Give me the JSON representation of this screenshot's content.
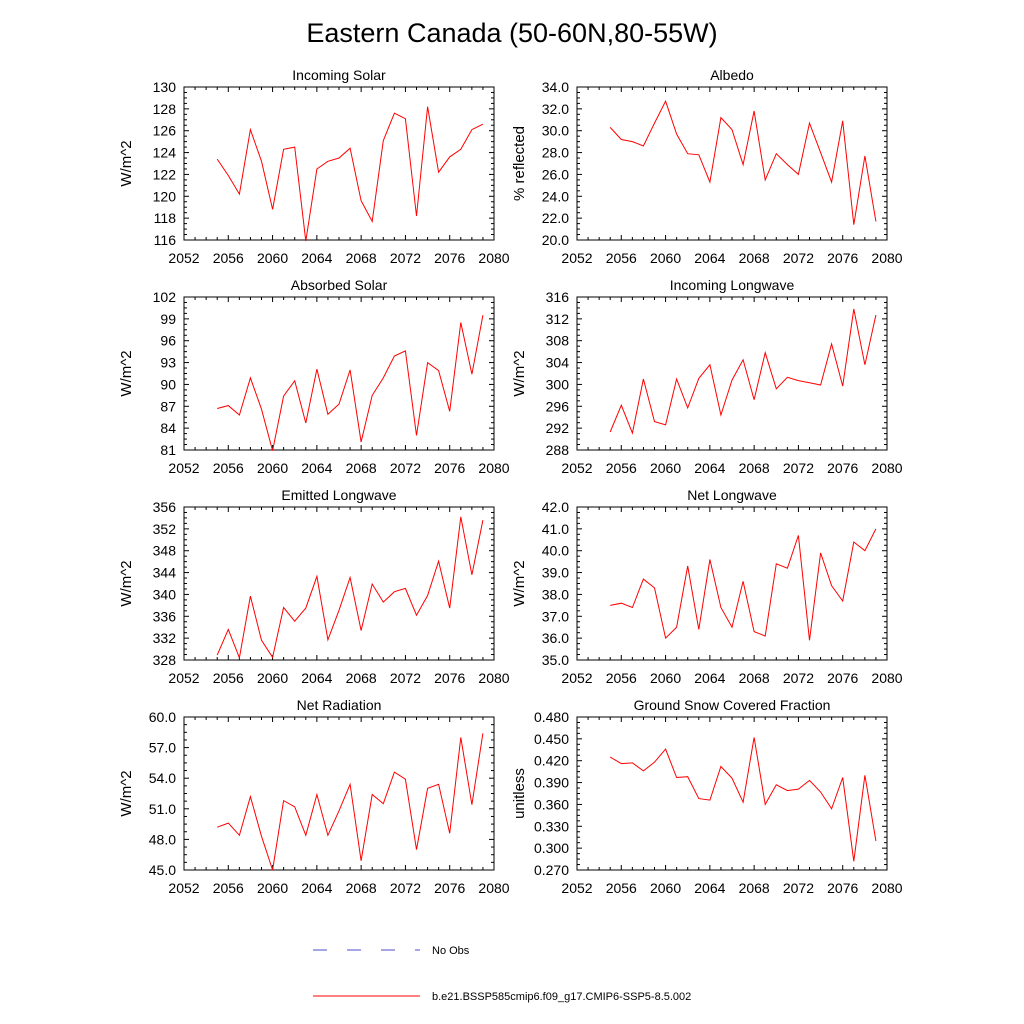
{
  "page": {
    "title": "Eastern Canada (50-60N,80-55W)"
  },
  "colors": {
    "series": "#ff0000",
    "obs": "#4c4ccc",
    "axis": "#000000"
  },
  "legend": {
    "obs_label": "No Obs",
    "model_label": "b.e21.BSSP585cmip6.f09_g17.CMIP6-SSP5-8.5.002"
  },
  "chart_data": [
    {
      "type": "line",
      "title": "Incoming Solar",
      "ylabel": "W/m^2",
      "xlim": [
        2052,
        2080
      ],
      "ylim": [
        116,
        130
      ],
      "x_ticks": [
        "2052",
        "2056",
        "2060",
        "2064",
        "2068",
        "2072",
        "2076",
        "2080"
      ],
      "y_ticks": [
        "116",
        "118",
        "120",
        "122",
        "124",
        "126",
        "128",
        "130"
      ],
      "x": [
        2055,
        2056,
        2057,
        2058,
        2059,
        2060,
        2061,
        2062,
        2063,
        2064,
        2065,
        2066,
        2067,
        2068,
        2069,
        2070,
        2071,
        2072,
        2073,
        2074,
        2075,
        2076,
        2077,
        2078,
        2079
      ],
      "series": [
        {
          "values": [
            123.4,
            121.9,
            120.2,
            126.1,
            123.2,
            118.8,
            124.3,
            124.5,
            115.9,
            122.5,
            123.2,
            123.5,
            124.4,
            119.6,
            117.7,
            125.1,
            127.6,
            127.1,
            118.2,
            128.2,
            122.2,
            123.6,
            124.3,
            126.1,
            126.6
          ]
        }
      ]
    },
    {
      "type": "line",
      "title": "Albedo",
      "ylabel": "% reflected",
      "xlim": [
        2052,
        2080
      ],
      "ylim": [
        20.0,
        34.0
      ],
      "x_ticks": [
        "2052",
        "2056",
        "2060",
        "2064",
        "2068",
        "2072",
        "2076",
        "2080"
      ],
      "y_ticks": [
        "20.0",
        "22.0",
        "24.0",
        "26.0",
        "28.0",
        "30.0",
        "32.0",
        "34.0"
      ],
      "x": [
        2055,
        2056,
        2057,
        2058,
        2059,
        2060,
        2061,
        2062,
        2063,
        2064,
        2065,
        2066,
        2067,
        2068,
        2069,
        2070,
        2071,
        2072,
        2073,
        2074,
        2075,
        2076,
        2077,
        2078,
        2079
      ],
      "series": [
        {
          "values": [
            30.3,
            29.2,
            29.0,
            28.6,
            30.7,
            32.7,
            29.7,
            27.9,
            27.8,
            25.3,
            31.2,
            30.1,
            26.9,
            31.8,
            25.5,
            27.9,
            26.9,
            26.0,
            30.7,
            28.0,
            25.3,
            30.9,
            21.4,
            27.7,
            21.7
          ]
        }
      ]
    },
    {
      "type": "line",
      "title": "Absorbed Solar",
      "ylabel": "W/m^2",
      "xlim": [
        2052,
        2080
      ],
      "ylim": [
        81,
        102
      ],
      "x_ticks": [
        "2052",
        "2056",
        "2060",
        "2064",
        "2068",
        "2072",
        "2076",
        "2080"
      ],
      "y_ticks": [
        "81",
        "84",
        "87",
        "90",
        "93",
        "96",
        "99",
        "102"
      ],
      "x": [
        2055,
        2056,
        2057,
        2058,
        2059,
        2060,
        2061,
        2062,
        2063,
        2064,
        2065,
        2066,
        2067,
        2068,
        2069,
        2070,
        2071,
        2072,
        2073,
        2074,
        2075,
        2076,
        2077,
        2078,
        2079
      ],
      "series": [
        {
          "values": [
            86.7,
            87.1,
            85.8,
            90.9,
            86.6,
            80.9,
            88.4,
            90.5,
            84.7,
            92.1,
            85.9,
            87.3,
            92.0,
            82.1,
            88.5,
            90.9,
            93.9,
            94.6,
            83.0,
            93.0,
            91.9,
            86.3,
            98.5,
            91.4,
            99.5
          ]
        }
      ]
    },
    {
      "type": "line",
      "title": "Incoming Longwave",
      "ylabel": "W/m^2",
      "xlim": [
        2052,
        2080
      ],
      "ylim": [
        288,
        316
      ],
      "x_ticks": [
        "2052",
        "2056",
        "2060",
        "2064",
        "2068",
        "2072",
        "2076",
        "2080"
      ],
      "y_ticks": [
        "288",
        "292",
        "296",
        "300",
        "304",
        "308",
        "312",
        "316"
      ],
      "x": [
        2055,
        2056,
        2057,
        2058,
        2059,
        2060,
        2061,
        2062,
        2063,
        2064,
        2065,
        2066,
        2067,
        2068,
        2069,
        2070,
        2071,
        2072,
        2073,
        2074,
        2075,
        2076,
        2077,
        2078,
        2079
      ],
      "series": [
        {
          "values": [
            291.3,
            296.2,
            291.1,
            301.0,
            293.2,
            292.6,
            301.0,
            295.7,
            301.1,
            303.6,
            294.4,
            300.8,
            304.5,
            297.2,
            305.8,
            299.2,
            301.3,
            300.7,
            300.3,
            299.9,
            307.4,
            299.7,
            313.8,
            303.6,
            312.7
          ]
        }
      ]
    },
    {
      "type": "line",
      "title": "Emitted Longwave",
      "ylabel": "W/m^2",
      "xlim": [
        2052,
        2080
      ],
      "ylim": [
        328,
        356
      ],
      "x_ticks": [
        "2052",
        "2056",
        "2060",
        "2064",
        "2068",
        "2072",
        "2076",
        "2080"
      ],
      "y_ticks": [
        "328",
        "332",
        "336",
        "340",
        "344",
        "348",
        "352",
        "356"
      ],
      "x": [
        2055,
        2056,
        2057,
        2058,
        2059,
        2060,
        2061,
        2062,
        2063,
        2064,
        2065,
        2066,
        2067,
        2068,
        2069,
        2070,
        2071,
        2072,
        2073,
        2074,
        2075,
        2076,
        2077,
        2078,
        2079
      ],
      "series": [
        {
          "values": [
            328.9,
            333.6,
            328.4,
            339.7,
            331.6,
            328.5,
            337.6,
            335.1,
            337.5,
            343.3,
            331.7,
            337.1,
            343.1,
            333.4,
            341.9,
            338.6,
            340.5,
            341.1,
            336.2,
            339.8,
            346.1,
            337.5,
            354.2,
            343.6,
            353.6
          ]
        }
      ]
    },
    {
      "type": "line",
      "title": "Net Longwave",
      "ylabel": "W/m^2",
      "xlim": [
        2052,
        2080
      ],
      "ylim": [
        35.0,
        42.0
      ],
      "x_ticks": [
        "2052",
        "2056",
        "2060",
        "2064",
        "2068",
        "2072",
        "2076",
        "2080"
      ],
      "y_ticks": [
        "35.0",
        "36.0",
        "37.0",
        "38.0",
        "39.0",
        "40.0",
        "41.0",
        "42.0"
      ],
      "x": [
        2055,
        2056,
        2057,
        2058,
        2059,
        2060,
        2061,
        2062,
        2063,
        2064,
        2065,
        2066,
        2067,
        2068,
        2069,
        2070,
        2071,
        2072,
        2073,
        2074,
        2075,
        2076,
        2077,
        2078,
        2079
      ],
      "series": [
        {
          "values": [
            37.5,
            37.6,
            37.4,
            38.7,
            38.3,
            36.0,
            36.5,
            39.3,
            36.4,
            39.6,
            37.4,
            36.5,
            38.6,
            36.3,
            36.1,
            39.4,
            39.2,
            40.7,
            35.9,
            39.9,
            38.4,
            37.7,
            40.4,
            40.0,
            41.0
          ]
        }
      ]
    },
    {
      "type": "line",
      "title": "Net Radiation",
      "ylabel": "W/m^2",
      "xlim": [
        2052,
        2080
      ],
      "ylim": [
        45.0,
        60.0
      ],
      "x_ticks": [
        "2052",
        "2056",
        "2060",
        "2064",
        "2068",
        "2072",
        "2076",
        "2080"
      ],
      "y_ticks": [
        "45.0",
        "48.0",
        "51.0",
        "54.0",
        "57.0",
        "60.0"
      ],
      "x": [
        2055,
        2056,
        2057,
        2058,
        2059,
        2060,
        2061,
        2062,
        2063,
        2064,
        2065,
        2066,
        2067,
        2068,
        2069,
        2070,
        2071,
        2072,
        2073,
        2074,
        2075,
        2076,
        2077,
        2078,
        2079
      ],
      "series": [
        {
          "values": [
            49.2,
            49.6,
            48.4,
            52.2,
            48.3,
            45.0,
            51.8,
            51.2,
            48.4,
            52.4,
            48.4,
            50.8,
            53.4,
            45.9,
            52.4,
            51.5,
            54.6,
            53.9,
            47.0,
            53.0,
            53.4,
            48.6,
            58.0,
            51.4,
            58.4
          ]
        }
      ]
    },
    {
      "type": "line",
      "title": "Ground Snow Covered Fraction",
      "ylabel": "unitless",
      "xlim": [
        2052,
        2080
      ],
      "ylim": [
        0.27,
        0.48
      ],
      "x_ticks": [
        "2052",
        "2056",
        "2060",
        "2064",
        "2068",
        "2072",
        "2076",
        "2080"
      ],
      "y_ticks": [
        "0.270",
        "0.300",
        "0.330",
        "0.360",
        "0.390",
        "0.420",
        "0.450",
        "0.480"
      ],
      "x": [
        2055,
        2056,
        2057,
        2058,
        2059,
        2060,
        2061,
        2062,
        2063,
        2064,
        2065,
        2066,
        2067,
        2068,
        2069,
        2070,
        2071,
        2072,
        2073,
        2074,
        2075,
        2076,
        2077,
        2078,
        2079
      ],
      "series": [
        {
          "values": [
            0.425,
            0.416,
            0.417,
            0.406,
            0.418,
            0.436,
            0.397,
            0.398,
            0.368,
            0.366,
            0.412,
            0.396,
            0.363,
            0.452,
            0.36,
            0.387,
            0.379,
            0.381,
            0.393,
            0.377,
            0.354,
            0.397,
            0.282,
            0.4,
            0.31
          ]
        }
      ]
    }
  ]
}
